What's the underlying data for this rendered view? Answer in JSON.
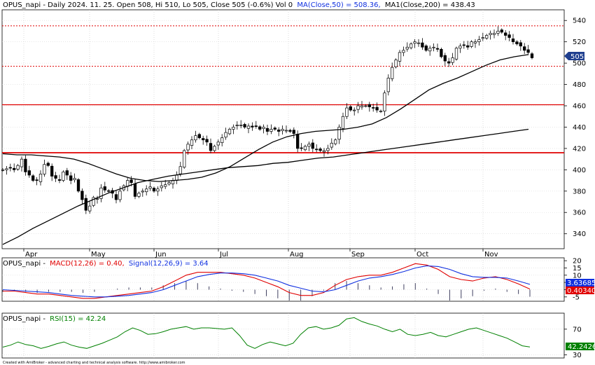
{
  "price_panel": {
    "header": {
      "symbol_info": "OPUS_napi - Daily 2024. 11. 25. Open 508, Hi 510, Lo 505, Close 505 (-0.6%) Vol 0",
      "ma50_label": "MA(Close,50) = 508.36,",
      "ma200_label": "MA1(Close,200) = 438.43"
    },
    "last_price_badge": "505",
    "colors": {
      "ma50": "#000000",
      "ma200": "#000000",
      "hline": "#e00000",
      "badge": "#1f3f8f"
    }
  },
  "macd_panel": {
    "header": {
      "symbol": "OPUS_napi -",
      "macd_label": "MACD(12,26) = 0.40,",
      "signal_label": "Signal(12,26,9) = 3.64"
    },
    "badge_signal": "3.63685",
    "badge_macd": "0.40340",
    "colors": {
      "macd": "#e00000",
      "signal": "#1030e0"
    }
  },
  "rsi_panel": {
    "header": {
      "symbol": "OPUS_napi -",
      "rsi_label": "RSI(15) = 42.24"
    },
    "badge": "42.2426",
    "colors": {
      "rsi": "#008000"
    }
  },
  "footer_text": "Created with AmiBroker - advanced charting and technical analysis software. http://www.amibroker.com",
  "chart_data": [
    {
      "type": "candlestick",
      "x_labels": [
        "Apr",
        "May",
        "Jun",
        "Jul",
        "Aug",
        "Sep",
        "Oct",
        "Nov"
      ],
      "yticks": [
        340,
        360,
        380,
        400,
        420,
        440,
        460,
        480,
        500,
        520,
        540
      ],
      "ylim": [
        326,
        550
      ],
      "horizontal_lines": [
        535,
        497,
        461,
        416
      ],
      "series": [
        {
          "name": "OPUS_napi",
          "close": [
            400,
            401,
            402,
            400,
            404,
            410,
            398,
            395,
            390,
            390,
            396,
            405,
            404,
            394,
            392,
            390,
            398,
            395,
            390,
            392,
            380,
            372,
            362,
            366,
            374,
            373,
            383,
            381,
            380,
            378,
            372,
            380,
            385,
            390,
            388,
            375,
            378,
            380,
            382,
            384,
            380,
            382,
            385,
            386,
            388,
            390,
            395,
            403,
            418,
            424,
            428,
            432,
            430,
            428,
            426,
            418,
            422,
            426,
            430,
            435,
            438,
            440,
            442,
            442,
            440,
            441,
            440,
            441,
            438,
            440,
            436,
            438,
            438,
            436,
            438,
            437,
            436,
            434,
            420,
            420,
            422,
            424,
            420,
            419,
            418,
            418,
            420,
            425,
            428,
            440,
            450,
            458,
            456,
            456,
            460,
            460,
            460,
            459,
            458,
            456,
            455,
            472,
            486,
            496,
            503,
            510,
            512,
            515,
            518,
            520,
            519,
            515,
            512,
            514,
            515,
            513,
            506,
            502,
            500,
            505,
            514,
            516,
            517,
            515,
            520,
            520,
            522,
            524,
            526,
            528,
            528,
            530,
            529,
            526,
            524,
            520,
            518,
            516,
            512,
            510,
            505
          ]
        },
        {
          "name": "MA(Close,50)",
          "values": [
            415,
            414,
            414,
            413,
            412,
            410,
            406,
            401,
            396,
            392,
            390,
            389,
            390,
            391,
            393,
            397,
            403,
            411,
            419,
            426,
            431,
            434,
            436,
            437,
            438,
            440,
            443,
            449,
            457,
            466,
            475,
            481,
            486,
            492,
            498,
            503,
            506,
            508
          ]
        },
        {
          "name": "MA1(Close,200)",
          "values": [
            330,
            337,
            345,
            352,
            359,
            366,
            372,
            378,
            383,
            388,
            391,
            394,
            396,
            398,
            400,
            402,
            403,
            404,
            406,
            407,
            409,
            411,
            412,
            414,
            416,
            418,
            420,
            422,
            424,
            426,
            428,
            430,
            432,
            434,
            436,
            438
          ]
        }
      ]
    },
    {
      "type": "line",
      "yticks": [
        -5,
        0,
        5,
        10,
        15,
        20
      ],
      "ylim": [
        -8,
        22
      ],
      "series": [
        {
          "name": "MACD(12,26)",
          "values": [
            -1,
            -1,
            -2,
            -3,
            -3,
            -4,
            -5,
            -6,
            -6,
            -5,
            -4,
            -3,
            -2,
            -1,
            2,
            6,
            10,
            12,
            12,
            12,
            11,
            10,
            8,
            5,
            2,
            -2,
            -4,
            -4,
            -2,
            3,
            7,
            9,
            10,
            10,
            12,
            15,
            18,
            17,
            14,
            9,
            7,
            6,
            8,
            9,
            7,
            4,
            0.4
          ]
        },
        {
          "name": "Signal(12,26,9)",
          "values": [
            0,
            -0.5,
            -1,
            -1.5,
            -2,
            -3,
            -4,
            -4.5,
            -5,
            -5,
            -4.5,
            -4,
            -3,
            -2,
            0,
            3,
            6,
            9,
            10.5,
            11.5,
            11.5,
            11,
            10,
            8,
            6,
            3,
            1,
            -1,
            -1.5,
            0,
            3,
            6,
            8,
            9,
            10.5,
            12.5,
            15,
            16.5,
            16,
            14,
            11,
            9,
            8.5,
            8.5,
            8,
            6,
            3.64
          ]
        }
      ]
    },
    {
      "type": "line",
      "yticks": [
        30,
        70
      ],
      "ylim": [
        25,
        95
      ],
      "series": [
        {
          "name": "RSI(15)",
          "values": [
            42,
            45,
            50,
            46,
            44,
            40,
            43,
            47,
            50,
            45,
            42,
            40,
            44,
            48,
            53,
            58,
            66,
            72,
            68,
            62,
            63,
            66,
            70,
            72,
            74,
            70,
            72,
            72,
            71,
            70,
            72,
            60,
            45,
            40,
            46,
            50,
            47,
            44,
            48,
            62,
            72,
            74,
            70,
            72,
            76,
            86,
            88,
            82,
            78,
            75,
            70,
            66,
            70,
            62,
            60,
            62,
            65,
            60,
            58,
            62,
            66,
            70,
            72,
            68,
            64,
            60,
            56,
            50,
            44,
            42.24
          ]
        }
      ]
    }
  ]
}
